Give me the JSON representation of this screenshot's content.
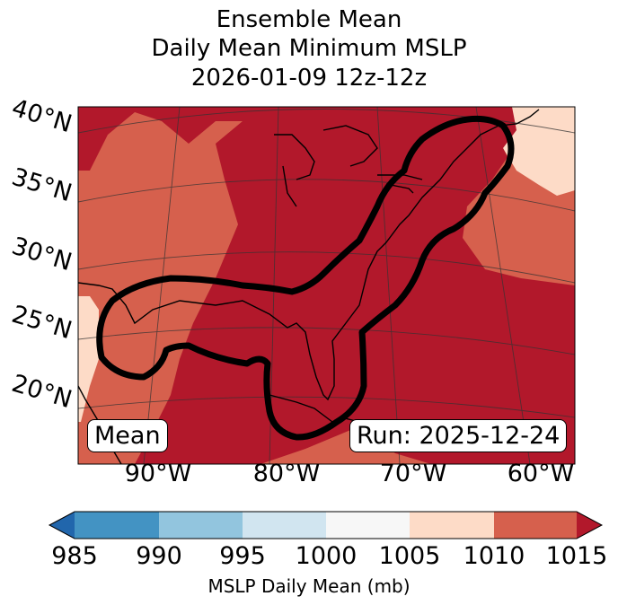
{
  "title": {
    "line1": "Ensemble Mean",
    "line2": "Daily Mean Minimum MSLP",
    "line3": "2026-01-09 12z-12z"
  },
  "lat_labels": [
    "40°N",
    "35°N",
    "30°N",
    "25°N",
    "20°N"
  ],
  "lon_labels": [
    "90°W",
    "80°W",
    "70°W",
    "60°W"
  ],
  "mean_label": "Mean",
  "run_label": "Run: 2025-12-24",
  "colorbar": {
    "ticks": [
      "985",
      "990",
      "995",
      "1000",
      "1005",
      "1010",
      "1015"
    ],
    "colors": [
      "#2166ac",
      "#4393c3",
      "#92c5de",
      "#d1e5f0",
      "#f7f7f7",
      "#fddbc7",
      "#d6604d",
      "#b2182b"
    ],
    "label": "MSLP Daily Mean (mb)"
  }
}
